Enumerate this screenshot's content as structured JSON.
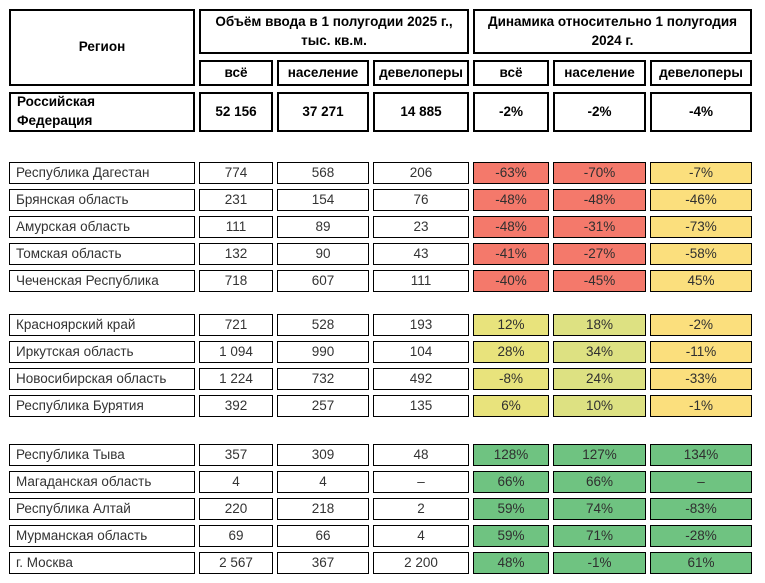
{
  "chart_data": {
    "type": "table",
    "title": "",
    "header": {
      "region": "Регион",
      "volume_group": "Объём ввода в 1 полугодии 2025 г., тыс. кв.м.",
      "dynamics_group": "Динамика относительно 1 полугодия 2024 г.",
      "subcolumns": [
        "всё",
        "население",
        "девелоперы"
      ]
    },
    "totals": {
      "region": "Российская Федерация",
      "volume": [
        "52 156",
        "37 271",
        "14 885"
      ],
      "dynamics": [
        "-2%",
        "-2%",
        "-4%"
      ]
    },
    "groups": [
      {
        "name": "declining-regions",
        "cell_colors": [
          "#f4796b",
          "#f4796b",
          "#fbdf7d"
        ],
        "rows": [
          {
            "region": "Республика Дагестан",
            "volume": [
              "774",
              "568",
              "206"
            ],
            "dynamics": [
              "-63%",
              "-70%",
              "-7%"
            ]
          },
          {
            "region": "Брянская область",
            "volume": [
              "231",
              "154",
              "76"
            ],
            "dynamics": [
              "-48%",
              "-48%",
              "-46%"
            ]
          },
          {
            "region": "Амурская область",
            "volume": [
              "111",
              "89",
              "23"
            ],
            "dynamics": [
              "-48%",
              "-31%",
              "-73%"
            ]
          },
          {
            "region": "Томская область",
            "volume": [
              "132",
              "90",
              "43"
            ],
            "dynamics": [
              "-41%",
              "-27%",
              "-58%"
            ]
          },
          {
            "region": "Чеченская Республика",
            "volume": [
              "718",
              "607",
              "111"
            ],
            "dynamics": [
              "-40%",
              "-45%",
              "45%"
            ]
          }
        ]
      },
      {
        "name": "mixed-regions",
        "cell_colors": [
          "#e8e37c",
          "#dde182",
          "#fbdf7d"
        ],
        "rows": [
          {
            "region": "Красноярский край",
            "volume": [
              "721",
              "528",
              "193"
            ],
            "dynamics": [
              "12%",
              "18%",
              "-2%"
            ]
          },
          {
            "region": "Иркутская область",
            "volume": [
              "1 094",
              "990",
              "104"
            ],
            "dynamics": [
              "28%",
              "34%",
              "-11%"
            ]
          },
          {
            "region": "Новосибирская область",
            "volume": [
              "1 224",
              "732",
              "492"
            ],
            "dynamics": [
              "-8%",
              "24%",
              "-33%"
            ]
          },
          {
            "region": "Республика Бурятия",
            "volume": [
              "392",
              "257",
              "135"
            ],
            "dynamics": [
              "6%",
              "10%",
              "-1%"
            ]
          }
        ]
      },
      {
        "name": "growing-regions",
        "cell_colors": [
          "#6fc381",
          "#6fc381",
          "#6fc381"
        ],
        "rows": [
          {
            "region": "Республика Тыва",
            "volume": [
              "357",
              "309",
              "48"
            ],
            "dynamics": [
              "128%",
              "127%",
              "134%"
            ]
          },
          {
            "region": "Магаданская область",
            "volume": [
              "4",
              "4",
              "–"
            ],
            "dynamics": [
              "66%",
              "66%",
              "–"
            ]
          },
          {
            "region": "Республика Алтай",
            "volume": [
              "220",
              "218",
              "2"
            ],
            "dynamics": [
              "59%",
              "74%",
              "-83%"
            ]
          },
          {
            "region": "Мурманская область",
            "volume": [
              "69",
              "66",
              "4"
            ],
            "dynamics": [
              "59%",
              "71%",
              "-28%"
            ]
          },
          {
            "region": "г. Москва",
            "volume": [
              "2 567",
              "367",
              "2 200"
            ],
            "dynamics": [
              "48%",
              "-1%",
              "61%"
            ]
          }
        ]
      }
    ]
  },
  "colors": {
    "negative": "#f4796b",
    "neutral_yellow": "#fbdf7d",
    "mixed_all": "#e8e37c",
    "mixed_population": "#dde182",
    "positive": "#6fc381",
    "border": "#000000"
  }
}
